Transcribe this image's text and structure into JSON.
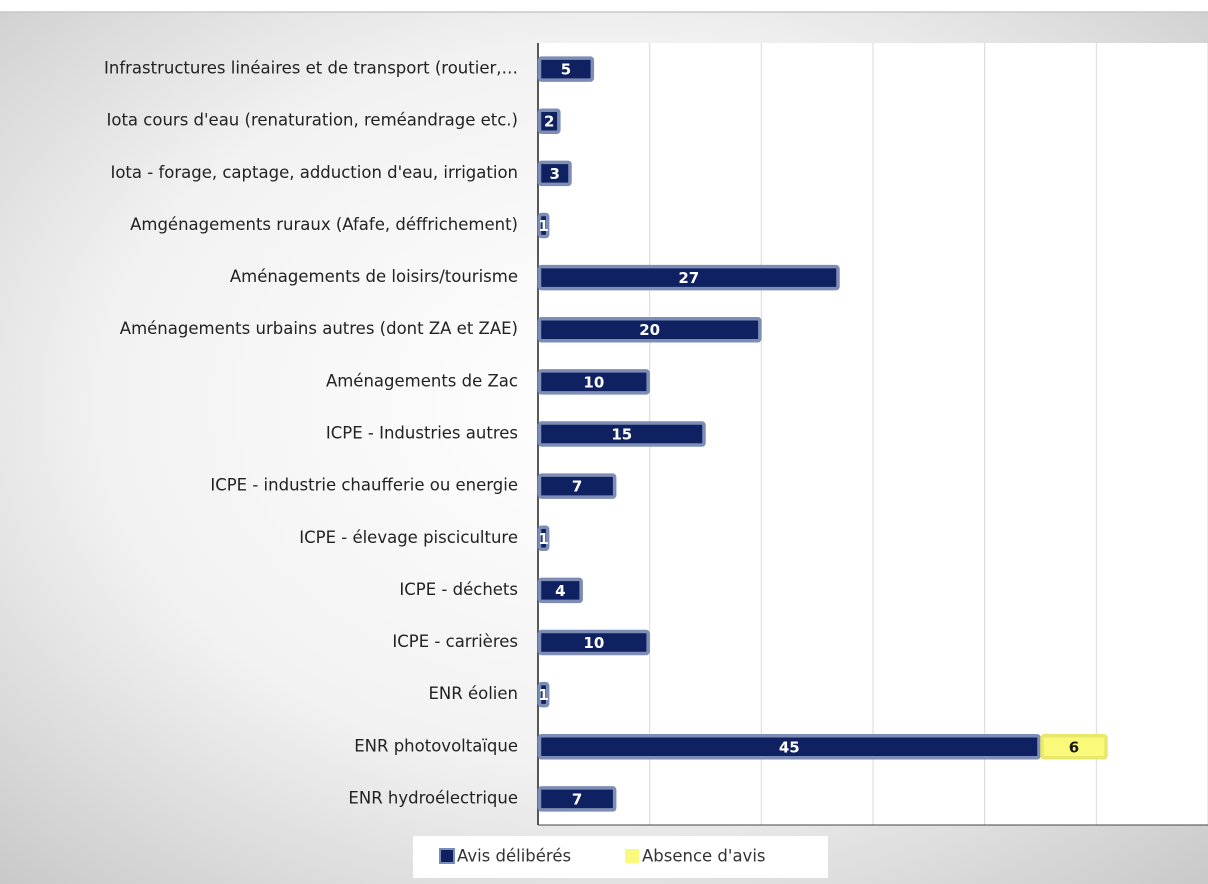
{
  "chart_data": {
    "type": "stacked-barh",
    "categories": [
      "Infrastructures linéaires et de transport (routier,…",
      "Iota cours d'eau (renaturation, reméandrage etc.)",
      "Iota - forage, captage, adduction d'eau, irrigation",
      "Amgénagements ruraux (Afafe, déffrichement)",
      "Aménagements de loisirs/tourisme",
      "Aménagements urbains autres (dont ZA et ZAE)",
      "Aménagements de Zac",
      "ICPE - Industries autres",
      "ICPE  - industrie chaufferie ou energie",
      "ICPE - élevage pisciculture",
      "ICPE  - déchets",
      "ICPE - carrières",
      "ENR éolien",
      "ENR photovoltaïque",
      "ENR hydroélectrique"
    ],
    "series": [
      {
        "name": "Avis délibérés",
        "color": "#0f2160",
        "values": [
          5,
          2,
          3,
          1,
          27,
          20,
          10,
          15,
          7,
          1,
          4,
          10,
          1,
          45,
          7
        ]
      },
      {
        "name": "Absence d'avis",
        "color": "#fbf979",
        "values": [
          null,
          null,
          null,
          null,
          null,
          null,
          null,
          null,
          null,
          null,
          null,
          null,
          null,
          6,
          null
        ]
      }
    ],
    "xlim": [
      0,
      60
    ],
    "xticks": [
      0,
      10,
      20,
      30,
      40,
      50,
      60
    ],
    "grid": true,
    "legend": "bottom"
  }
}
